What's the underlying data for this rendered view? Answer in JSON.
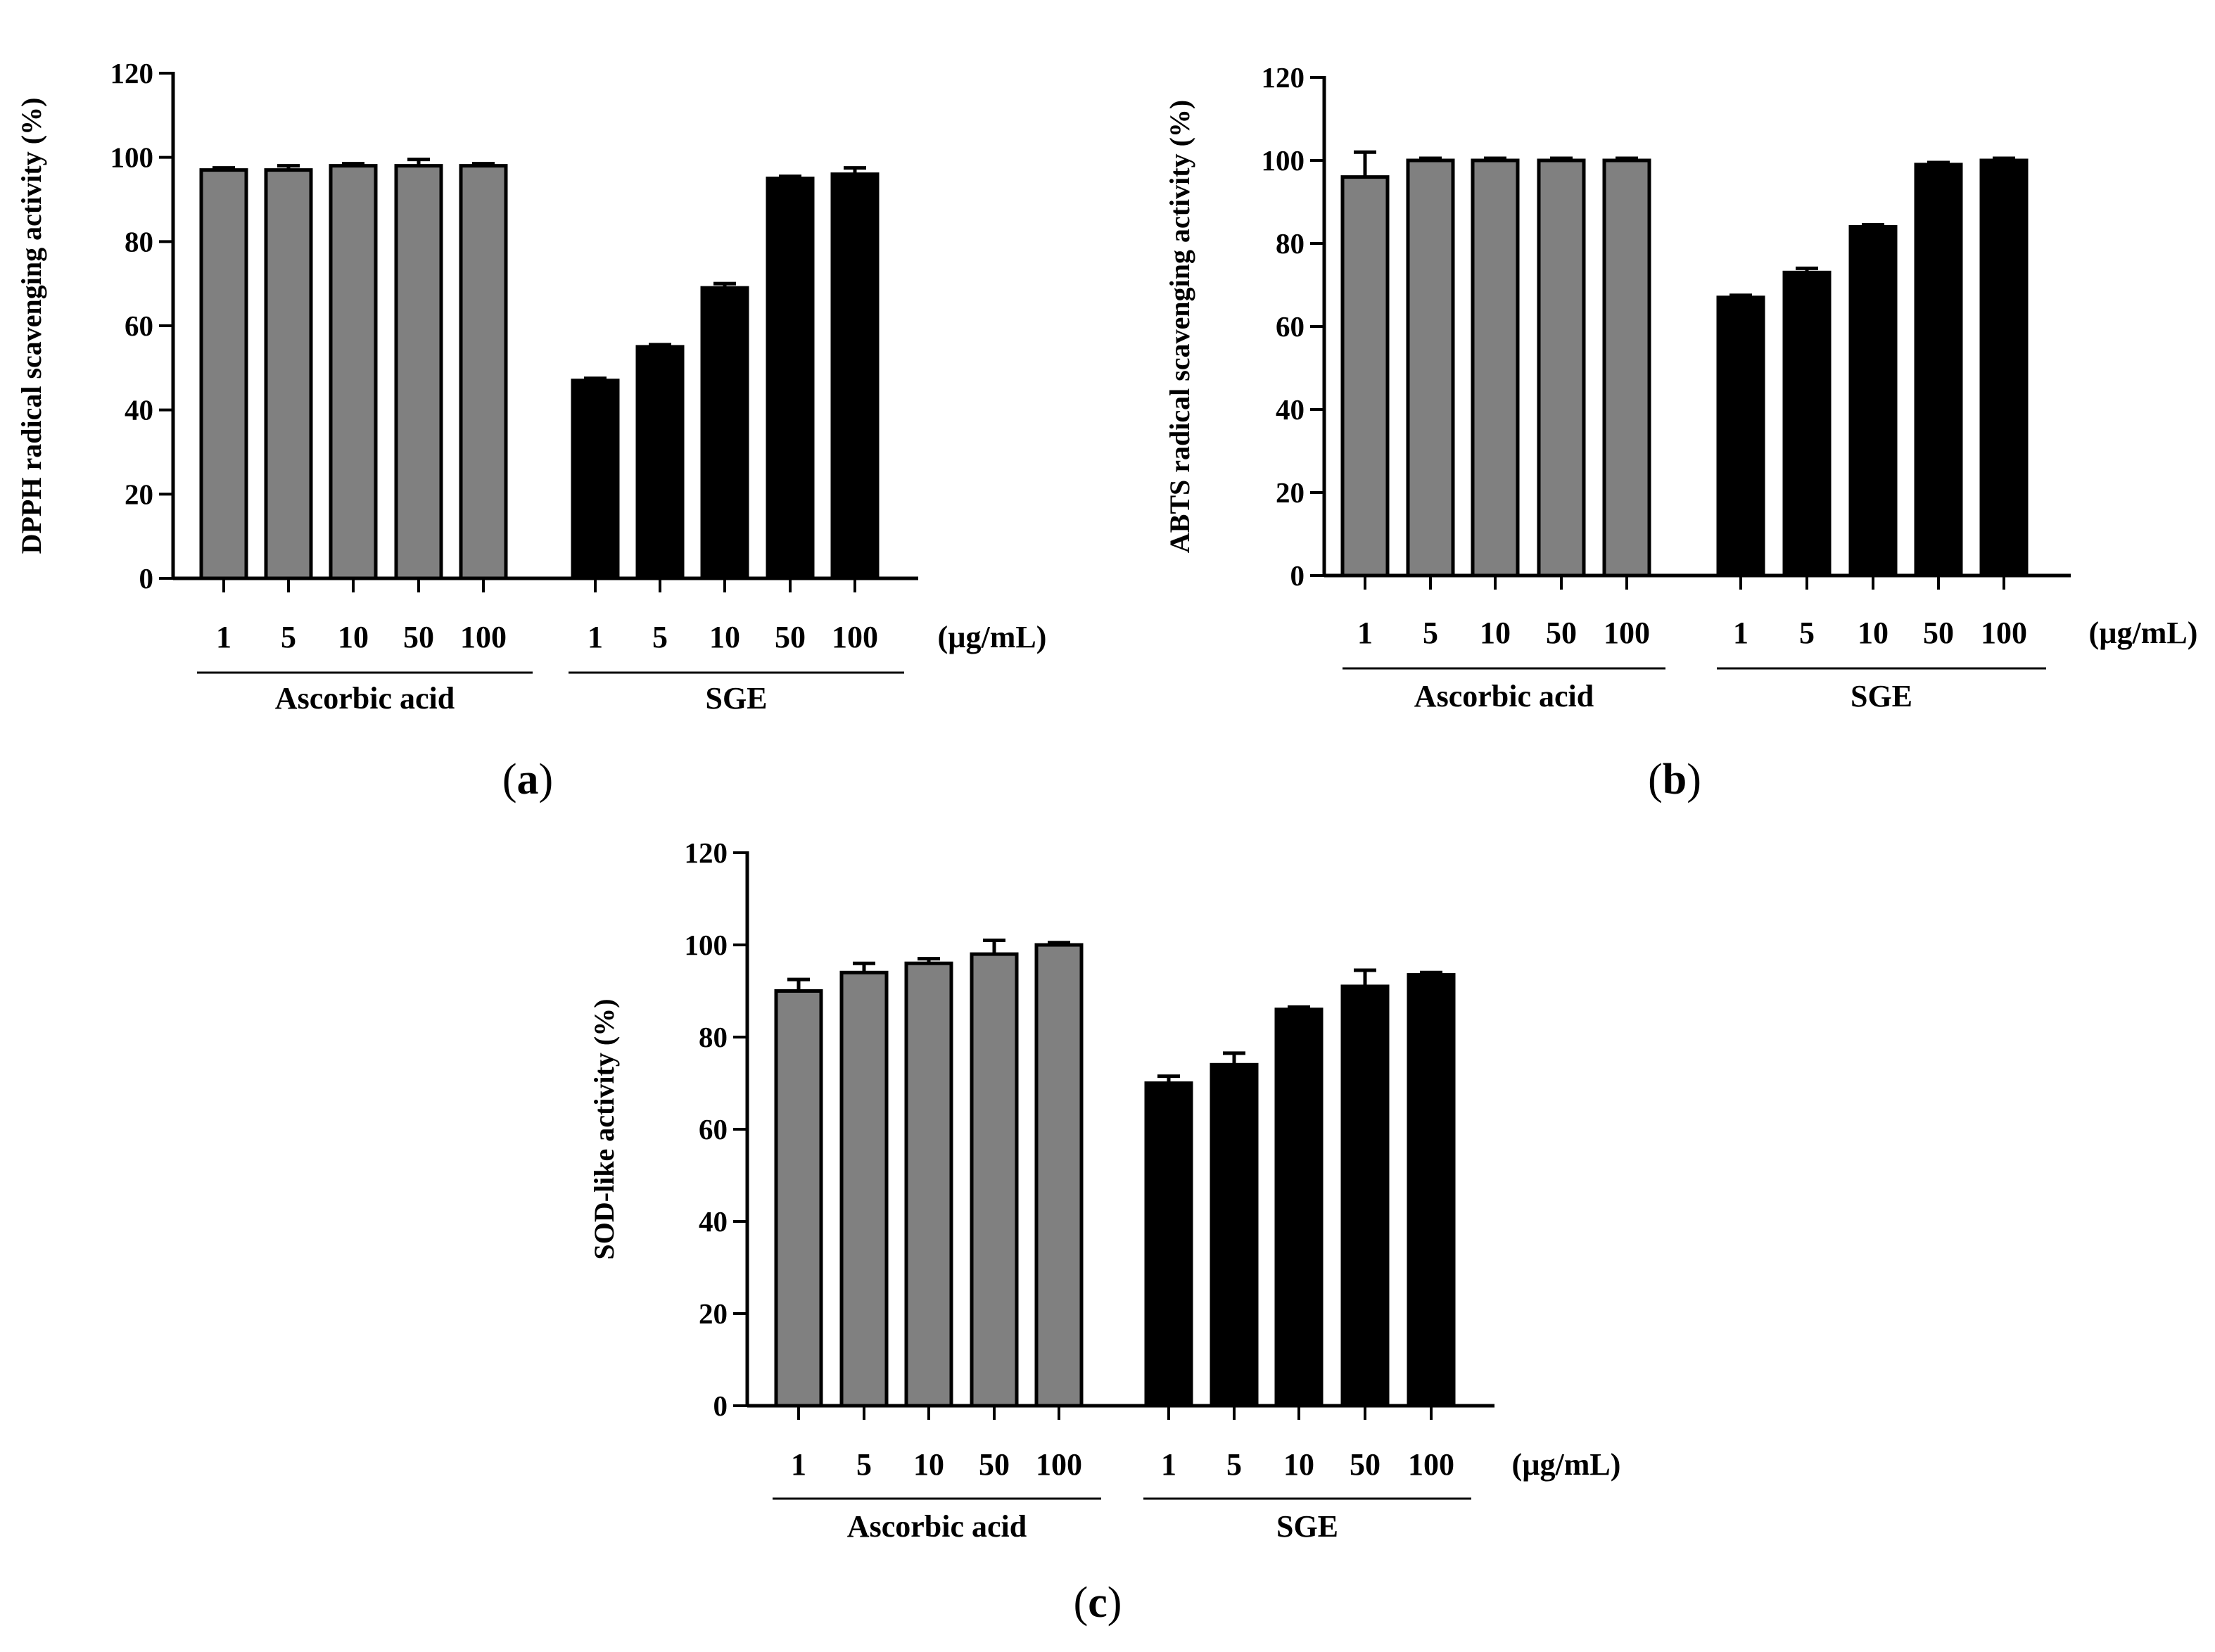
{
  "chart_data": [
    {
      "type": "bar",
      "panel": "a",
      "ylabel": "DPPH radical scavenging activity (%)",
      "ylim": [
        0,
        120
      ],
      "yticks": [
        0,
        20,
        40,
        60,
        80,
        100,
        120
      ],
      "unit_label": "(µg/mL)",
      "groups": [
        {
          "name": "Ascorbic acid",
          "color": "#808080",
          "categories": [
            "1",
            "5",
            "10",
            "50",
            "100"
          ],
          "values": [
            97,
            97,
            98,
            98,
            98
          ],
          "errors": [
            0.5,
            1,
            0.5,
            1.5,
            0.5
          ]
        },
        {
          "name": "SGE",
          "color": "#000000",
          "categories": [
            "1",
            "5",
            "10",
            "50",
            "100"
          ],
          "values": [
            47,
            55,
            69,
            95,
            96
          ],
          "errors": [
            0.5,
            0.5,
            1,
            0.5,
            1.5
          ]
        }
      ]
    },
    {
      "type": "bar",
      "panel": "b",
      "ylabel": "ABTS radical scavenging activity (%)",
      "ylim": [
        0,
        120
      ],
      "yticks": [
        0,
        20,
        40,
        60,
        80,
        100,
        120
      ],
      "unit_label": "(µg/mL)",
      "groups": [
        {
          "name": "Ascorbic acid",
          "color": "#808080",
          "categories": [
            "1",
            "5",
            "10",
            "50",
            "100"
          ],
          "values": [
            96,
            100,
            100,
            100,
            100
          ],
          "errors": [
            6,
            0.5,
            0.5,
            0.5,
            0.5
          ]
        },
        {
          "name": "SGE",
          "color": "#000000",
          "categories": [
            "1",
            "5",
            "10",
            "50",
            "100"
          ],
          "values": [
            67,
            73,
            84,
            99,
            100
          ],
          "errors": [
            0.5,
            1,
            0.5,
            0.5,
            0.5
          ]
        }
      ]
    },
    {
      "type": "bar",
      "panel": "c",
      "ylabel": "SOD-like activity (%)",
      "ylim": [
        0,
        120
      ],
      "yticks": [
        0,
        20,
        40,
        60,
        80,
        100,
        120
      ],
      "unit_label": "(µg/mL)",
      "groups": [
        {
          "name": "Ascorbic acid",
          "color": "#808080",
          "categories": [
            "1",
            "5",
            "10",
            "50",
            "100"
          ],
          "values": [
            90,
            94,
            96,
            98,
            100
          ],
          "errors": [
            2.5,
            2,
            1,
            3,
            0.5
          ]
        },
        {
          "name": "SGE",
          "color": "#000000",
          "categories": [
            "1",
            "5",
            "10",
            "50",
            "100"
          ],
          "values": [
            70,
            74,
            86,
            91,
            93.5
          ],
          "errors": [
            1.5,
            2.5,
            0.5,
            3.5,
            0.5
          ]
        }
      ]
    }
  ],
  "panel_labels": [
    "(a)",
    "(b)",
    "(c)"
  ]
}
